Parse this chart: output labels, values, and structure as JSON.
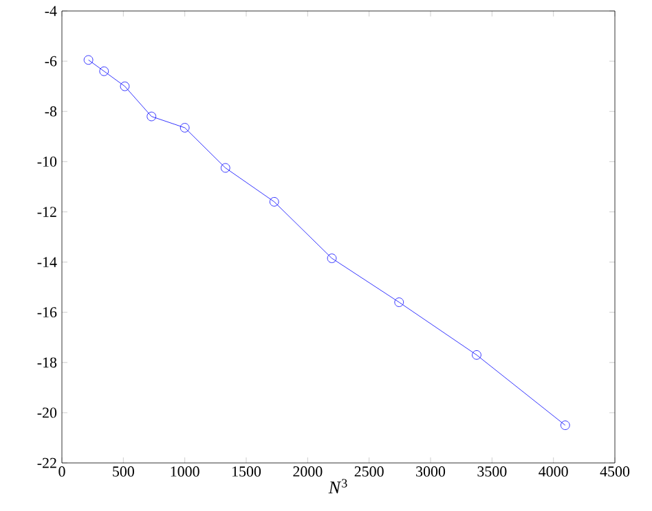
{
  "chart_data": {
    "type": "line",
    "xlabel": "*N*$^{3}$",
    "x": [
      216,
      343,
      512,
      729,
      1000,
      1331,
      1728,
      2197,
      2744,
      3375,
      4096
    ],
    "series": [
      {
        "color": "#0000ff",
        "values": [
          -5.95,
          -6.4,
          -7.0,
          -8.2,
          -8.65,
          -10.25,
          -11.6,
          -13.85,
          -15.6,
          -17.7,
          -20.5
        ]
      }
    ],
    "xlim": [
      0,
      4500
    ],
    "xticks": [
      0,
      500,
      1000,
      1500,
      2000,
      2500,
      3000,
      3500,
      4000,
      4500
    ],
    "ylim": [
      -22,
      -4
    ],
    "yticks": [
      -22,
      -20,
      -18,
      -16,
      -14,
      -12,
      -10,
      -8,
      -6,
      -4
    ],
    "grid": false,
    "marker": "circle",
    "line_style": "solid"
  }
}
